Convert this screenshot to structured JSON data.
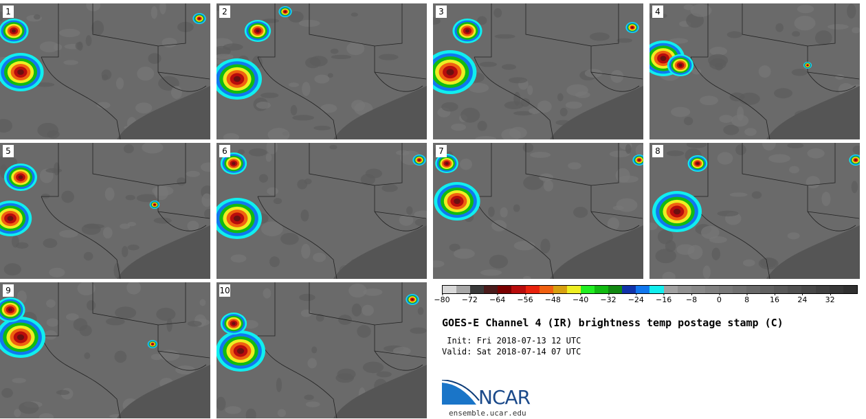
{
  "panels": [
    {
      "label": "1"
    },
    {
      "label": "2"
    },
    {
      "label": "3"
    },
    {
      "label": "4"
    },
    {
      "label": "5"
    },
    {
      "label": "6"
    },
    {
      "label": "7"
    },
    {
      "label": "8"
    },
    {
      "label": "9"
    },
    {
      "label": "10"
    }
  ],
  "colorbar": {
    "colors": [
      "#d8d8d8",
      "#a6a6a6",
      "#3a3a3a",
      "#4a1c1c",
      "#7a0000",
      "#b80c0c",
      "#e8220d",
      "#f06010",
      "#d8a010",
      "#eeee22",
      "#22ee22",
      "#11bb11",
      "#118811",
      "#1133aa",
      "#1177ee",
      "#11eeee",
      "#a0a0a0",
      "#909090",
      "#888888",
      "#808080",
      "#787878",
      "#707070",
      "#686868",
      "#606060",
      "#585858",
      "#505050",
      "#484848",
      "#404040",
      "#383838",
      "#303030"
    ],
    "ticks": [
      "−80",
      "−72",
      "−64",
      "−56",
      "−48",
      "−40",
      "−32",
      "−24",
      "−16",
      "−8",
      "0",
      "8",
      "16",
      "24",
      "32"
    ]
  },
  "title": "GOES-E Channel 4 (IR) brightness temp postage stamp (C)",
  "init_line": " Init: Fri 2018-07-13 12 UTC",
  "valid_line": "Valid: Sat 2018-07-14 07 UTC",
  "logo": {
    "text": "NCAR",
    "site": "ensemble.ucar.edu"
  }
}
